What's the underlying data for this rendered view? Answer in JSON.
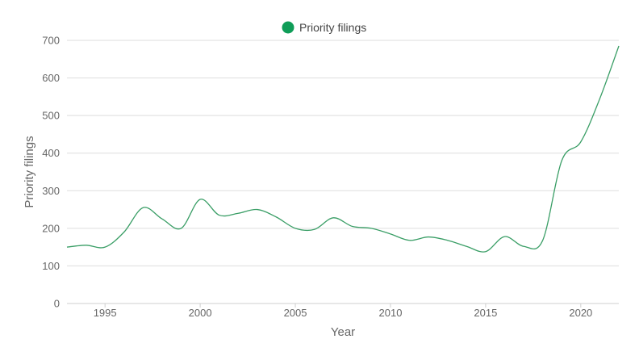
{
  "chart_data": {
    "type": "line",
    "xlabel": "Year",
    "ylabel": "Priority filings",
    "xlim": [
      1993,
      2022
    ],
    "ylim": [
      0,
      700
    ],
    "x_ticks": [
      1995,
      2000,
      2005,
      2010,
      2015,
      2020
    ],
    "y_ticks": [
      0,
      100,
      200,
      300,
      400,
      500,
      600,
      700
    ],
    "grid": true,
    "legend_position": "top-center",
    "series": [
      {
        "name": "Priority filings",
        "color": "#0f9d58",
        "line_color": "#3a9e66",
        "x": [
          1993,
          1994,
          1995,
          1996,
          1997,
          1998,
          1999,
          2000,
          2001,
          2002,
          2003,
          2004,
          2005,
          2006,
          2007,
          2008,
          2009,
          2010,
          2011,
          2012,
          2013,
          2014,
          2015,
          2016,
          2017,
          2018,
          2019,
          2020,
          2021,
          2022
        ],
        "y": [
          150,
          155,
          150,
          190,
          255,
          225,
          200,
          277,
          235,
          240,
          250,
          230,
          200,
          197,
          228,
          205,
          200,
          185,
          168,
          177,
          168,
          152,
          138,
          178,
          152,
          168,
          380,
          430,
          545,
          685
        ]
      }
    ]
  }
}
